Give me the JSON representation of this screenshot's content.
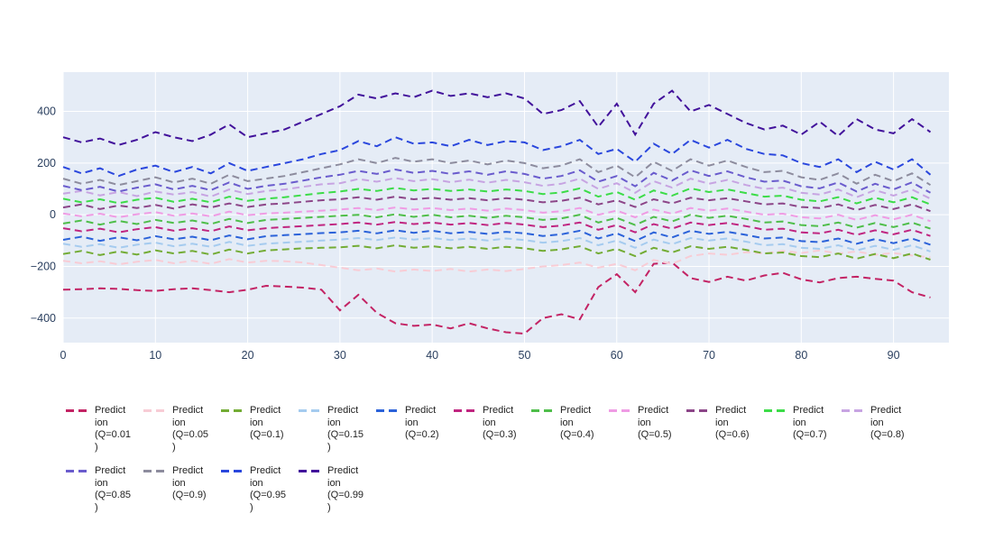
{
  "colors": {
    "page_bg": "#ffffff",
    "plot_bg": "#e5ecf6",
    "grid": "#ffffff",
    "tick_label": "#2a3f5f",
    "legend_text": "#222222"
  },
  "chart_data": {
    "type": "line",
    "title": "",
    "xlabel": "",
    "ylabel": "",
    "line_style": "dashed",
    "grid": true,
    "legend_position": "bottom",
    "xlim": [
      0,
      96
    ],
    "ylim": [
      -495,
      552
    ],
    "x_ticks": [
      0,
      10,
      20,
      30,
      40,
      50,
      60,
      70,
      80,
      90
    ],
    "y_ticks": [
      -400,
      -200,
      0,
      200,
      400
    ],
    "x_start": 0,
    "x_step": 2,
    "series": [
      {
        "name": "Prediction (Q=0.01)",
        "label_wrapped": "Predict\nion\n(Q=0.01\n)",
        "color": "#c32364",
        "values": [
          -290,
          -288,
          -285,
          -287,
          -292,
          -295,
          -288,
          -285,
          -292,
          -300,
          -290,
          -275,
          -278,
          -282,
          -290,
          -370,
          -310,
          -380,
          -420,
          -430,
          -425,
          -440,
          -420,
          -440,
          -455,
          -460,
          -400,
          -385,
          -405,
          -280,
          -230,
          -300,
          -190,
          -185,
          -245,
          -260,
          -240,
          -255,
          -235,
          -225,
          -250,
          -262,
          -245,
          -240,
          -248,
          -255,
          -300,
          -320
        ]
      },
      {
        "name": "Prediction (Q=0.05)",
        "label_wrapped": "Predict\nion\n(Q=0.05\n)",
        "color": "#f8ccd5",
        "values": [
          -178,
          -188,
          -180,
          -192,
          -182,
          -175,
          -188,
          -178,
          -190,
          -172,
          -185,
          -178,
          -180,
          -185,
          -195,
          -205,
          -215,
          -208,
          -220,
          -212,
          -218,
          -210,
          -220,
          -212,
          -218,
          -210,
          -200,
          -195,
          -185,
          -205,
          -190,
          -215,
          -175,
          -190,
          -160,
          -150,
          -155,
          -145,
          -150,
          -140,
          -148,
          -138,
          -150,
          -142,
          -155,
          -148,
          -158,
          -165
        ]
      },
      {
        "name": "Prediction (Q=0.1)",
        "label_wrapped": "Predict\nion\n(Q=0.1)",
        "color": "#73ac35",
        "values": [
          -152,
          -140,
          -156,
          -142,
          -154,
          -138,
          -150,
          -140,
          -154,
          -135,
          -150,
          -138,
          -134,
          -130,
          -128,
          -126,
          -120,
          -130,
          -118,
          -128,
          -122,
          -130,
          -124,
          -132,
          -124,
          -130,
          -140,
          -134,
          -122,
          -150,
          -132,
          -160,
          -128,
          -146,
          -122,
          -132,
          -124,
          -136,
          -150,
          -146,
          -160,
          -164,
          -150,
          -170,
          -152,
          -168,
          -150,
          -174
        ]
      },
      {
        "name": "Prediction (Q=0.15)",
        "label_wrapped": "Predict\nion\n(Q=0.15\n)",
        "color": "#a5cbef",
        "values": [
          -112,
          -124,
          -114,
          -128,
          -116,
          -108,
          -122,
          -112,
          -124,
          -105,
          -120,
          -112,
          -108,
          -104,
          -100,
          -96,
          -90,
          -98,
          -88,
          -96,
          -90,
          -98,
          -92,
          -100,
          -92,
          -98,
          -108,
          -102,
          -90,
          -118,
          -100,
          -128,
          -96,
          -114,
          -90,
          -100,
          -92,
          -104,
          -118,
          -114,
          -128,
          -132,
          -118,
          -138,
          -120,
          -136,
          -118,
          -142
        ]
      },
      {
        "name": "Prediction (Q=0.2)",
        "label_wrapped": "Predict\nion\n(Q=0.2)",
        "color": "#2b62d9",
        "values": [
          -97,
          -85,
          -101,
          -87,
          -99,
          -83,
          -95,
          -85,
          -99,
          -80,
          -95,
          -83,
          -79,
          -75,
          -71,
          -68,
          -62,
          -72,
          -60,
          -70,
          -62,
          -72,
          -66,
          -74,
          -66,
          -72,
          -82,
          -76,
          -62,
          -92,
          -72,
          -102,
          -68,
          -88,
          -62,
          -74,
          -66,
          -78,
          -92,
          -88,
          -102,
          -106,
          -92,
          -112,
          -94,
          -110,
          -92,
          -116
        ]
      },
      {
        "name": "Prediction (Q=0.3)",
        "label_wrapped": "Predict\nion\n(Q=0.3)",
        "color": "#c02580",
        "values": [
          -52,
          -64,
          -54,
          -68,
          -56,
          -48,
          -62,
          -52,
          -64,
          -45,
          -60,
          -52,
          -48,
          -44,
          -40,
          -36,
          -30,
          -38,
          -28,
          -36,
          -30,
          -38,
          -32,
          -40,
          -32,
          -38,
          -48,
          -42,
          -30,
          -58,
          -40,
          -68,
          -36,
          -54,
          -30,
          -40,
          -32,
          -44,
          -58,
          -54,
          -68,
          -72,
          -58,
          -78,
          -60,
          -76,
          -58,
          -82
        ]
      },
      {
        "name": "Prediction (Q=0.4)",
        "label_wrapped": "Predict\nion\n(Q=0.4)",
        "color": "#4fbe4a",
        "values": [
          -34,
          -22,
          -38,
          -24,
          -36,
          -20,
          -32,
          -22,
          -36,
          -16,
          -32,
          -20,
          -16,
          -12,
          -8,
          -4,
          0,
          -10,
          2,
          -8,
          0,
          -10,
          -4,
          -12,
          -4,
          -10,
          -20,
          -14,
          0,
          -30,
          -12,
          -40,
          -8,
          -26,
          0,
          -12,
          -4,
          -16,
          -30,
          -26,
          -40,
          -44,
          -30,
          -50,
          -32,
          -48,
          -30,
          -54
        ]
      },
      {
        "name": "Prediction (Q=0.5)",
        "label_wrapped": "Predict\nion\n(Q=0.5)",
        "color": "#ef9ce4",
        "values": [
          5,
          -6,
          4,
          -10,
          2,
          10,
          -4,
          5,
          -6,
          12,
          -2,
          5,
          8,
          12,
          16,
          20,
          26,
          18,
          28,
          20,
          26,
          18,
          24,
          16,
          24,
          18,
          8,
          14,
          26,
          0,
          16,
          -10,
          20,
          4,
          26,
          16,
          24,
          12,
          0,
          4,
          -10,
          -14,
          0,
          -20,
          -2,
          -18,
          0,
          -25
        ]
      },
      {
        "name": "Prediction (Q=0.6)",
        "label_wrapped": "Predict\nion\n(Q=0.6)",
        "color": "#8c4588",
        "values": [
          28,
          40,
          22,
          36,
          26,
          38,
          24,
          40,
          28,
          44,
          30,
          40,
          44,
          50,
          56,
          60,
          68,
          58,
          70,
          60,
          66,
          58,
          64,
          56,
          64,
          58,
          48,
          54,
          66,
          40,
          56,
          30,
          60,
          44,
          66,
          56,
          64,
          52,
          40,
          44,
          30,
          26,
          40,
          18,
          38,
          22,
          40,
          14
        ]
      },
      {
        "name": "Prediction (Q=0.7)",
        "label_wrapped": "Predict\nion\n(Q=0.7)",
        "color": "#3cdc48",
        "values": [
          62,
          48,
          60,
          45,
          58,
          66,
          50,
          62,
          48,
          70,
          54,
          62,
          68,
          76,
          84,
          90,
          100,
          92,
          104,
          94,
          100,
          92,
          98,
          90,
          98,
          92,
          80,
          86,
          102,
          70,
          88,
          58,
          94,
          74,
          102,
          88,
          98,
          84,
          70,
          74,
          58,
          52,
          68,
          44,
          66,
          48,
          68,
          40
        ]
      },
      {
        "name": "Prediction (Q=0.8)",
        "label_wrapped": "Predict\nion\n(Q=0.8)",
        "color": "#c7a4e2",
        "values": [
          82,
          92,
          75,
          88,
          72,
          90,
          78,
          88,
          70,
          98,
          80,
          92,
          98,
          108,
          118,
          122,
          138,
          128,
          142,
          130,
          138,
          126,
          136,
          124,
          135,
          126,
          112,
          120,
          140,
          100,
          122,
          85,
          130,
          105,
          140,
          120,
          135,
          115,
          100,
          105,
          85,
          78,
          98,
          68,
          95,
          74,
          98,
          62
        ]
      },
      {
        "name": "Prediction (Q=0.85)",
        "label_wrapped": "Predict\nion\n(Q=0.85\n)",
        "color": "#6a5ccd",
        "values": [
          112,
          95,
          108,
          90,
          105,
          118,
          98,
          112,
          95,
          125,
          100,
          112,
          120,
          132,
          145,
          155,
          170,
          158,
          175,
          162,
          170,
          158,
          168,
          155,
          168,
          158,
          140,
          150,
          172,
          128,
          150,
          110,
          162,
          132,
          172,
          150,
          168,
          145,
          128,
          132,
          110,
          102,
          125,
          90,
          120,
          98,
          125,
          85
        ]
      },
      {
        "name": "Prediction (Q=0.9)",
        "label_wrapped": "Predict\nion\n(Q=0.9)",
        "color": "#8d8c9e",
        "values": [
          140,
          120,
          135,
          115,
          130,
          145,
          125,
          140,
          120,
          155,
          130,
          140,
          150,
          165,
          180,
          195,
          215,
          200,
          220,
          205,
          215,
          200,
          210,
          195,
          210,
          200,
          180,
          190,
          215,
          165,
          190,
          145,
          205,
          170,
          215,
          190,
          210,
          185,
          165,
          170,
          145,
          135,
          160,
          120,
          155,
          130,
          160,
          115
        ]
      },
      {
        "name": "Prediction (Q=0.95)",
        "label_wrapped": "Predict\nion\n(Q=0.95\n)",
        "color": "#2a47dd",
        "values": [
          185,
          160,
          180,
          150,
          175,
          190,
          165,
          185,
          160,
          200,
          170,
          185,
          200,
          215,
          235,
          250,
          285,
          265,
          300,
          275,
          280,
          265,
          290,
          270,
          285,
          280,
          250,
          265,
          290,
          235,
          255,
          205,
          275,
          235,
          290,
          260,
          290,
          255,
          235,
          230,
          200,
          185,
          215,
          165,
          205,
          175,
          215,
          155
        ]
      },
      {
        "name": "Prediction (Q=0.99)",
        "label_wrapped": "Predict\nion\n(Q=0.99\n)",
        "color": "#42129b",
        "values": [
          300,
          280,
          295,
          270,
          290,
          320,
          300,
          285,
          310,
          350,
          300,
          315,
          330,
          360,
          390,
          420,
          465,
          450,
          470,
          455,
          480,
          460,
          470,
          455,
          470,
          450,
          390,
          405,
          440,
          340,
          430,
          310,
          430,
          480,
          400,
          425,
          390,
          355,
          330,
          345,
          310,
          360,
          305,
          370,
          330,
          315,
          370,
          320
        ]
      }
    ]
  }
}
